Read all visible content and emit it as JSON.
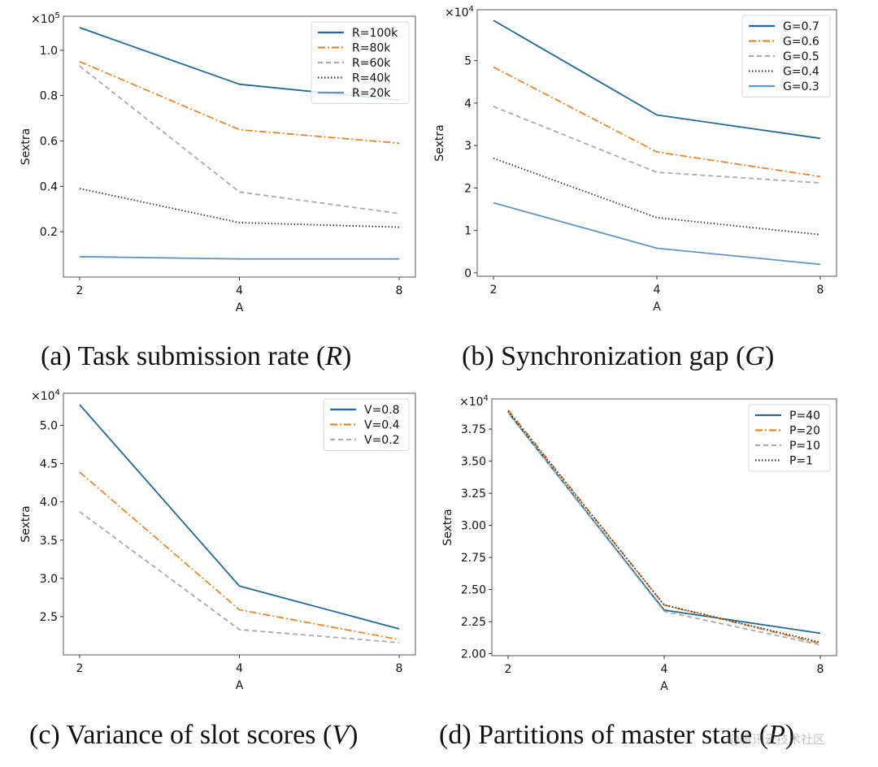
{
  "chart_data": [
    {
      "id": "a",
      "type": "line",
      "caption": "(a) Task submission rate (R)",
      "caption_prefix": "(a) Task submission rate (",
      "caption_var": "R",
      "caption_suffix": ")",
      "xlabel": "A",
      "ylabel": "Sextra",
      "multiplier": "×10^5",
      "multiplier_base": "×10",
      "multiplier_exp": "5",
      "x": [
        2,
        4,
        8
      ],
      "x_ticks": [
        "2",
        "4",
        "8"
      ],
      "x_scale": "log2",
      "ylim": [
        0.0,
        1.15
      ],
      "y_ticks": [
        0.2,
        0.4,
        0.6,
        0.8,
        1.0
      ],
      "y_tick_labels": [
        "0.2",
        "0.4",
        "0.6",
        "0.8",
        "1.0"
      ],
      "legend_position": "top-right",
      "series": [
        {
          "name": "R=100k",
          "style": "solid",
          "color": "#1f6a94",
          "values": [
            1.1,
            0.85,
            0.78
          ]
        },
        {
          "name": "R=80k",
          "style": "dashdot",
          "color": "#e8872a",
          "values": [
            0.95,
            0.65,
            0.59
          ]
        },
        {
          "name": "R=60k",
          "style": "dashed",
          "color": "#aaaaaa",
          "values": [
            0.93,
            0.375,
            0.28
          ]
        },
        {
          "name": "R=40k",
          "style": "dotted",
          "color": "#333333",
          "values": [
            0.39,
            0.24,
            0.22
          ]
        },
        {
          "name": "R=20k",
          "style": "solid",
          "color": "#5e95c4",
          "values": [
            0.09,
            0.08,
            0.08
          ]
        }
      ]
    },
    {
      "id": "b",
      "type": "line",
      "caption": "(b) Synchronization gap (G)",
      "caption_prefix": "(b) Synchronization gap (",
      "caption_var": "G",
      "caption_suffix": ")",
      "xlabel": "A",
      "ylabel": "Sextra",
      "multiplier": "×10^4",
      "multiplier_base": "×10",
      "multiplier_exp": "4",
      "x": [
        2,
        4,
        8
      ],
      "x_ticks": [
        "2",
        "4",
        "8"
      ],
      "x_scale": "log2",
      "ylim": [
        -0.08,
        6.2
      ],
      "y_ticks": [
        0,
        1,
        2,
        3,
        4,
        5
      ],
      "y_tick_labels": [
        "0",
        "1",
        "2",
        "3",
        "4",
        "5"
      ],
      "legend_position": "top-right",
      "series": [
        {
          "name": "G=0.7",
          "style": "solid",
          "color": "#1f6a94",
          "values": [
            5.95,
            3.72,
            3.17
          ]
        },
        {
          "name": "G=0.6",
          "style": "dashdot",
          "color": "#e8872a",
          "values": [
            4.85,
            2.85,
            2.27
          ]
        },
        {
          "name": "G=0.5",
          "style": "dashed",
          "color": "#aaaaaa",
          "values": [
            3.92,
            2.37,
            2.12
          ]
        },
        {
          "name": "G=0.4",
          "style": "dotted",
          "color": "#333333",
          "values": [
            2.7,
            1.3,
            0.9
          ]
        },
        {
          "name": "G=0.3",
          "style": "solid",
          "color": "#5e95c4",
          "values": [
            1.65,
            0.58,
            0.2
          ]
        }
      ]
    },
    {
      "id": "c",
      "type": "line",
      "caption": "(c) Variance of slot scores (V)",
      "caption_prefix": "(c) Variance of slot scores (",
      "caption_var": "V",
      "caption_suffix": ")",
      "xlabel": "A",
      "ylabel": "Sextra",
      "multiplier": "×10^4",
      "multiplier_base": "×10",
      "multiplier_exp": "4",
      "x": [
        2,
        4,
        8
      ],
      "x_ticks": [
        "2",
        "4",
        "8"
      ],
      "x_scale": "log2",
      "ylim": [
        2.0,
        5.42
      ],
      "y_ticks": [
        2.5,
        3.0,
        3.5,
        4.0,
        4.5,
        5.0
      ],
      "y_tick_labels": [
        "2.5",
        "3.0",
        "3.5",
        "4.0",
        "4.5",
        "5.0"
      ],
      "legend_position": "top-right",
      "series": [
        {
          "name": "V=0.8",
          "style": "solid",
          "color": "#1f6a94",
          "values": [
            5.27,
            2.9,
            2.34
          ]
        },
        {
          "name": "V=0.4",
          "style": "dashdot",
          "color": "#e8872a",
          "values": [
            4.39,
            2.59,
            2.2
          ]
        },
        {
          "name": "V=0.2",
          "style": "dashed",
          "color": "#aaaaaa",
          "values": [
            3.87,
            2.33,
            2.16
          ]
        }
      ]
    },
    {
      "id": "d",
      "type": "line",
      "caption": "(d) Partitions of master state (P)",
      "caption_prefix": "(d) Partitions of master state (",
      "caption_var": "P",
      "caption_suffix": ")",
      "xlabel": "A",
      "ylabel": "Sextra",
      "multiplier": "×10^4",
      "multiplier_base": "×10",
      "multiplier_exp": "4",
      "x": [
        2,
        4,
        8
      ],
      "x_ticks": [
        "2",
        "4",
        "8"
      ],
      "x_scale": "log2",
      "ylim": [
        1.985,
        3.985
      ],
      "y_ticks": [
        2.0,
        2.25,
        2.5,
        2.75,
        3.0,
        3.25,
        3.5,
        3.75
      ],
      "y_tick_labels": [
        "2.00",
        "2.25",
        "2.50",
        "2.75",
        "3.00",
        "3.25",
        "3.50",
        "3.75"
      ],
      "legend_position": "top-right",
      "series": [
        {
          "name": "P=40",
          "style": "solid",
          "color": "#1f6a94",
          "values": [
            3.88,
            2.34,
            2.16
          ]
        },
        {
          "name": "P=20",
          "style": "dashdot",
          "color": "#e8872a",
          "values": [
            3.9,
            2.38,
            2.08
          ]
        },
        {
          "name": "P=10",
          "style": "dashed",
          "color": "#aaaaaa",
          "values": [
            3.88,
            2.33,
            2.07
          ]
        },
        {
          "name": "P=1",
          "style": "dotted",
          "color": "#333333",
          "values": [
            3.89,
            2.38,
            2.09
          ]
        }
      ]
    }
  ],
  "watermark": "@腾讯云技术社区"
}
